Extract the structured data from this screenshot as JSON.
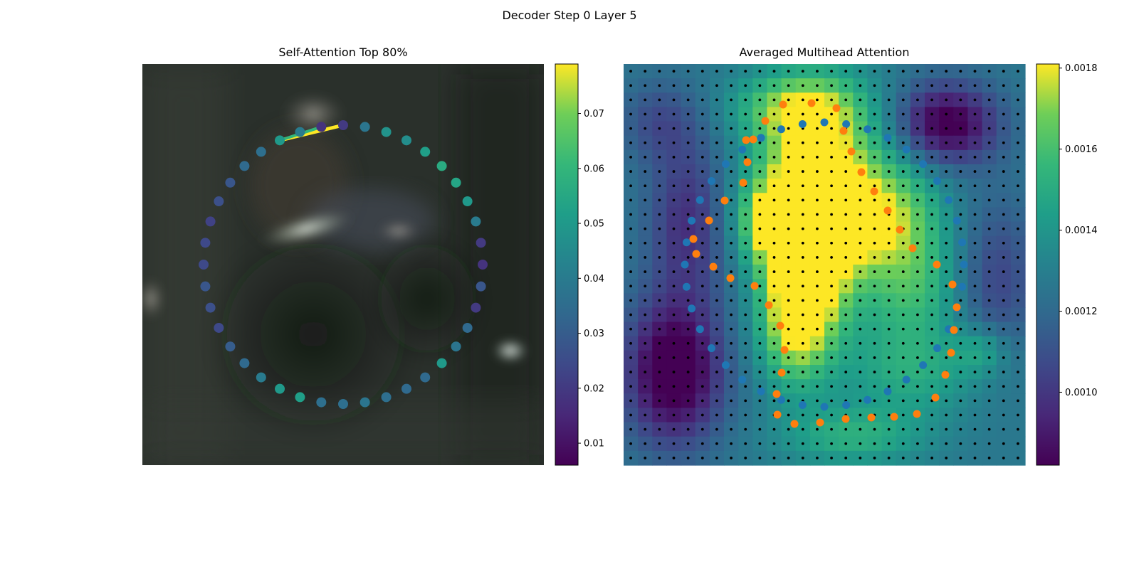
{
  "figure": {
    "suptitle": "Decoder Step 0 Layer 5"
  },
  "chart_data": [
    {
      "type": "scatter",
      "title": "Self-Attention Top 80%",
      "background": "blurred video frame (dark scene, bright highlights near top-center)",
      "colormap": "viridis",
      "colorbar": {
        "range": [
          0.006,
          0.079
        ],
        "ticks": [
          "0.01",
          "0.02",
          "0.03",
          "0.04",
          "0.05",
          "0.06",
          "0.07"
        ]
      },
      "point_values": [
        0.05,
        0.04,
        0.018,
        0.02,
        0.038,
        0.048,
        0.046,
        0.052,
        0.056,
        0.054,
        0.05,
        0.04,
        0.02,
        0.018,
        0.028,
        0.02,
        0.034,
        0.038,
        0.05,
        0.034,
        0.034,
        0.036,
        0.038,
        0.036,
        0.036,
        0.052,
        0.05,
        0.04,
        0.034,
        0.03,
        0.024,
        0.026,
        0.028,
        0.024,
        0.024,
        0.022,
        0.026,
        0.028,
        0.034,
        0.036
      ],
      "attention_edges": [
        {
          "from_point": 0,
          "to_point": 3,
          "value": 0.079
        },
        {
          "from_point": 0,
          "to_point": 2,
          "value": 0.06
        }
      ]
    },
    {
      "type": "heatmap",
      "title": "Averaged Multihead Attention",
      "colormap": "viridis",
      "colorbar": {
        "range": [
          0.00082,
          0.00181
        ],
        "ticks": [
          "0.0010",
          "0.0012",
          "0.0014",
          "0.0016",
          "0.0018"
        ]
      },
      "grid": {
        "rows": 28,
        "cols": 28
      },
      "point_series": [
        {
          "name": "blue points",
          "color": "#1f77b4"
        },
        {
          "name": "orange points",
          "color": "#ff7f0e"
        },
        {
          "name": "grid points",
          "color": "#000000"
        }
      ]
    }
  ]
}
